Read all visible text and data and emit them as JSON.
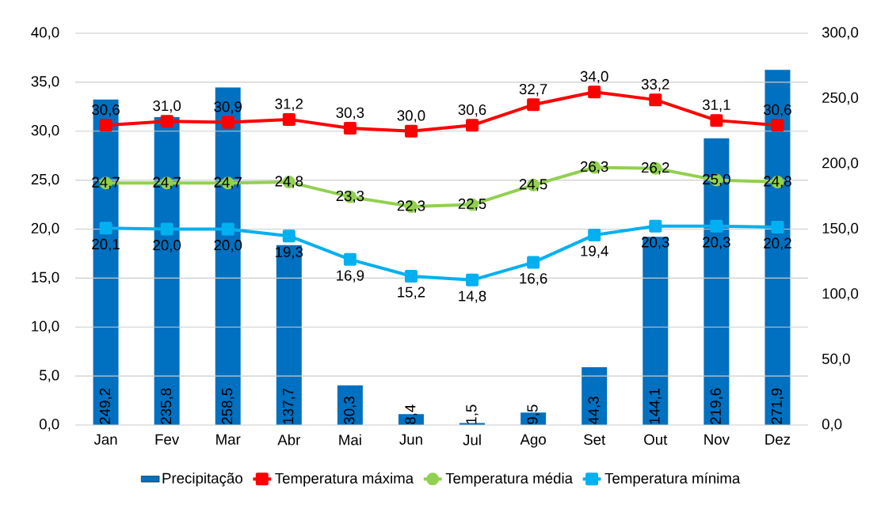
{
  "chart_data": {
    "type": "bar",
    "categories": [
      "Jan",
      "Fev",
      "Mar",
      "Abr",
      "Mai",
      "Jun",
      "Jul",
      "Ago",
      "Set",
      "Out",
      "Nov",
      "Dez"
    ],
    "series": [
      {
        "name": "Precipitação",
        "axis": "y2",
        "color": "#0070c0",
        "values": [
          249.2,
          235.8,
          258.5,
          137.7,
          30.3,
          8.4,
          1.5,
          9.5,
          44.3,
          144.1,
          219.6,
          271.9
        ],
        "value_labels": [
          "249,2",
          "235,8",
          "258,5",
          "137,7",
          "30,3",
          "8,4",
          "1,5",
          "9,5",
          "44,3",
          "144,1",
          "219,6",
          "271,9"
        ]
      },
      {
        "name": "Temperatura máxima",
        "type": "line",
        "color": "#ff0000",
        "marker": "square",
        "values": [
          30.6,
          31.0,
          30.9,
          31.2,
          30.3,
          30.0,
          30.6,
          32.7,
          34.0,
          33.2,
          31.1,
          30.6
        ],
        "value_labels": [
          "30,6",
          "31,0",
          "30,9",
          "31,2",
          "30,3",
          "30,0",
          "30,6",
          "32,7",
          "34,0",
          "33,2",
          "31,1",
          "30,6"
        ]
      },
      {
        "name": "Temperatura média",
        "type": "line",
        "color": "#92d050",
        "marker": "circle",
        "values": [
          24.7,
          24.7,
          24.7,
          24.8,
          23.3,
          22.3,
          22.5,
          24.5,
          26.3,
          26.2,
          25.0,
          24.8
        ],
        "value_labels": [
          "24,7",
          "24,7",
          "24,7",
          "24,8",
          "23,3",
          "22,3",
          "22,5",
          "24,5",
          "26,3",
          "26,2",
          "25,0",
          "24,8"
        ]
      },
      {
        "name": "Temperatura mínima",
        "type": "line",
        "color": "#00b0f0",
        "marker": "square",
        "values": [
          20.1,
          20.0,
          20.0,
          19.3,
          16.9,
          15.2,
          14.8,
          16.6,
          19.4,
          20.3,
          20.3,
          20.2
        ],
        "value_labels": [
          "20,1",
          "20,0",
          "20,0",
          "19,3",
          "16,9",
          "15,2",
          "14,8",
          "16,6",
          "19,4",
          "20,3",
          "20,3",
          "20,2"
        ]
      }
    ],
    "ylim": [
      0,
      40
    ],
    "yticks": [
      {
        "value": 0,
        "label": "0,0"
      },
      {
        "value": 5,
        "label": "5,0"
      },
      {
        "value": 10,
        "label": "10,0"
      },
      {
        "value": 15,
        "label": "15,0"
      },
      {
        "value": 20,
        "label": "20,0"
      },
      {
        "value": 25,
        "label": "25,0"
      },
      {
        "value": 30,
        "label": "30,0"
      },
      {
        "value": 35,
        "label": "35,0"
      },
      {
        "value": 40,
        "label": "40,0"
      }
    ],
    "y2lim": [
      0,
      300
    ],
    "y2ticks": [
      {
        "value": 0,
        "label": "0,0"
      },
      {
        "value": 50,
        "label": "50,0"
      },
      {
        "value": 100,
        "label": "100,0"
      },
      {
        "value": 150,
        "label": "150,0"
      },
      {
        "value": 200,
        "label": "200,0"
      },
      {
        "value": 250,
        "label": "250,0"
      },
      {
        "value": 300,
        "label": "300,0"
      }
    ],
    "grid": "y",
    "legend": "bottom"
  }
}
